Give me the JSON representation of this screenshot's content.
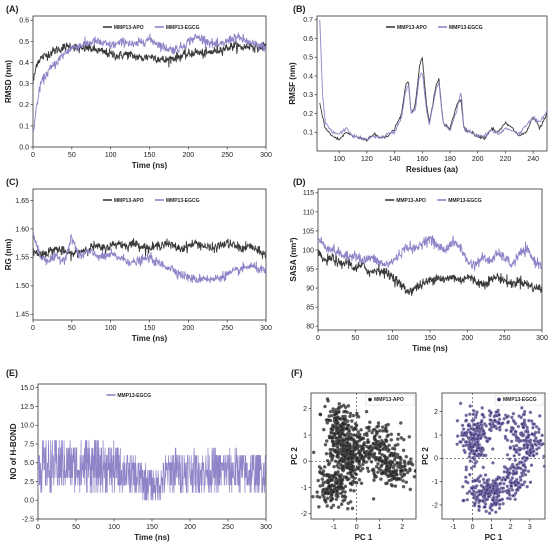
{
  "colors": {
    "apo": "#3a3a3a",
    "egcg": "#8f84c8",
    "egcg_fill": "#3b2f6e",
    "apo_fill": "#1f1f1f"
  },
  "chart_data": [
    {
      "id": "A",
      "panel_label": "(A)",
      "type": "line",
      "xlabel": "Time (ns)",
      "ylabel": "RMSD (nm)",
      "xlim": [
        0,
        300
      ],
      "ylim": [
        0,
        0.62
      ],
      "xticks": [
        0,
        50,
        100,
        150,
        200,
        250,
        300
      ],
      "yticks": [
        0.0,
        0.1,
        0.2,
        0.3,
        0.4,
        0.5,
        0.6
      ],
      "legend": "top-center",
      "series": [
        {
          "name": "MMP13-APO",
          "color": "#3a3a3a",
          "x": [
            0,
            5,
            10,
            20,
            30,
            40,
            50,
            60,
            70,
            80,
            90,
            100,
            110,
            120,
            130,
            140,
            150,
            160,
            170,
            180,
            190,
            200,
            210,
            220,
            230,
            240,
            250,
            260,
            270,
            280,
            290,
            300
          ],
          "y": [
            0.3,
            0.4,
            0.42,
            0.44,
            0.46,
            0.47,
            0.48,
            0.46,
            0.47,
            0.46,
            0.45,
            0.44,
            0.43,
            0.44,
            0.43,
            0.42,
            0.43,
            0.42,
            0.41,
            0.42,
            0.43,
            0.44,
            0.45,
            0.44,
            0.45,
            0.46,
            0.47,
            0.48,
            0.47,
            0.48,
            0.47,
            0.48
          ]
        },
        {
          "name": "MMP13-EGCG",
          "color": "#8f84c8",
          "x": [
            0,
            5,
            10,
            20,
            30,
            40,
            50,
            60,
            70,
            80,
            90,
            100,
            110,
            120,
            130,
            140,
            150,
            160,
            170,
            180,
            190,
            200,
            210,
            220,
            230,
            240,
            250,
            260,
            270,
            280,
            290,
            300
          ],
          "y": [
            0.06,
            0.2,
            0.3,
            0.36,
            0.4,
            0.44,
            0.47,
            0.48,
            0.49,
            0.5,
            0.49,
            0.48,
            0.49,
            0.5,
            0.48,
            0.5,
            0.51,
            0.49,
            0.47,
            0.46,
            0.47,
            0.5,
            0.52,
            0.51,
            0.49,
            0.48,
            0.5,
            0.52,
            0.51,
            0.49,
            0.48,
            0.47
          ]
        }
      ]
    },
    {
      "id": "B",
      "panel_label": "(B)",
      "type": "line",
      "xlabel": "Residues (aa)",
      "ylabel": "RMSF (nm)",
      "xlim": [
        84,
        250
      ],
      "ylim": [
        0,
        0.72
      ],
      "xticks": [
        100,
        120,
        140,
        160,
        180,
        200,
        220,
        240
      ],
      "yticks": [
        0.1,
        0.2,
        0.3,
        0.4,
        0.5,
        0.6,
        0.7
      ],
      "legend": "top-center",
      "series": [
        {
          "name": "MMP13-APO",
          "color": "#3a3a3a",
          "x": [
            86,
            90,
            95,
            100,
            105,
            110,
            115,
            120,
            125,
            130,
            135,
            140,
            145,
            148,
            150,
            152,
            155,
            158,
            160,
            163,
            165,
            170,
            172,
            175,
            180,
            185,
            188,
            190,
            195,
            200,
            205,
            210,
            215,
            220,
            225,
            230,
            235,
            240,
            245,
            250
          ],
          "y": [
            0.25,
            0.12,
            0.08,
            0.06,
            0.1,
            0.08,
            0.07,
            0.06,
            0.09,
            0.07,
            0.08,
            0.12,
            0.2,
            0.35,
            0.37,
            0.2,
            0.25,
            0.45,
            0.5,
            0.25,
            0.15,
            0.35,
            0.38,
            0.15,
            0.12,
            0.25,
            0.28,
            0.12,
            0.1,
            0.08,
            0.07,
            0.12,
            0.1,
            0.15,
            0.12,
            0.08,
            0.1,
            0.18,
            0.12,
            0.2
          ]
        },
        {
          "name": "MMP13-EGCG",
          "color": "#8f84c8",
          "x": [
            86,
            88,
            90,
            95,
            100,
            105,
            110,
            115,
            120,
            125,
            130,
            135,
            140,
            145,
            148,
            150,
            152,
            155,
            158,
            160,
            163,
            165,
            170,
            172,
            175,
            180,
            185,
            188,
            190,
            195,
            200,
            205,
            210,
            215,
            220,
            225,
            230,
            235,
            240,
            245,
            250
          ],
          "y": [
            0.7,
            0.3,
            0.15,
            0.1,
            0.09,
            0.12,
            0.08,
            0.07,
            0.06,
            0.08,
            0.07,
            0.09,
            0.1,
            0.18,
            0.32,
            0.35,
            0.2,
            0.22,
            0.4,
            0.42,
            0.22,
            0.14,
            0.33,
            0.36,
            0.15,
            0.11,
            0.22,
            0.32,
            0.12,
            0.1,
            0.08,
            0.08,
            0.11,
            0.09,
            0.12,
            0.11,
            0.09,
            0.14,
            0.18,
            0.15,
            0.22
          ]
        }
      ]
    },
    {
      "id": "C",
      "panel_label": "(C)",
      "type": "line",
      "xlabel": "Time (ns)",
      "ylabel": "RG (nm)",
      "xlim": [
        0,
        300
      ],
      "ylim": [
        1.44,
        1.67
      ],
      "xticks": [
        0,
        50,
        100,
        150,
        200,
        250,
        300
      ],
      "yticks": [
        1.45,
        1.5,
        1.55,
        1.6,
        1.65
      ],
      "legend": "top-center",
      "series": [
        {
          "name": "MMP13-APO",
          "color": "#3a3a3a",
          "x": [
            0,
            10,
            20,
            30,
            40,
            50,
            60,
            70,
            80,
            90,
            100,
            110,
            120,
            130,
            140,
            150,
            160,
            170,
            180,
            190,
            200,
            210,
            220,
            230,
            240,
            250,
            260,
            270,
            280,
            290,
            300
          ],
          "y": [
            1.56,
            1.555,
            1.56,
            1.565,
            1.56,
            1.555,
            1.56,
            1.565,
            1.57,
            1.565,
            1.57,
            1.575,
            1.57,
            1.575,
            1.57,
            1.565,
            1.57,
            1.575,
            1.57,
            1.565,
            1.57,
            1.575,
            1.57,
            1.565,
            1.57,
            1.575,
            1.57,
            1.565,
            1.57,
            1.56,
            1.555
          ]
        },
        {
          "name": "MMP13-EGCG",
          "color": "#8f84c8",
          "x": [
            0,
            10,
            20,
            30,
            40,
            50,
            60,
            70,
            80,
            90,
            100,
            110,
            120,
            130,
            140,
            150,
            160,
            170,
            180,
            190,
            200,
            210,
            220,
            230,
            240,
            250,
            260,
            270,
            280,
            290,
            300
          ],
          "y": [
            1.59,
            1.55,
            1.545,
            1.55,
            1.545,
            1.585,
            1.55,
            1.56,
            1.555,
            1.55,
            1.555,
            1.55,
            1.545,
            1.54,
            1.545,
            1.55,
            1.54,
            1.535,
            1.53,
            1.52,
            1.515,
            1.51,
            1.515,
            1.51,
            1.515,
            1.52,
            1.525,
            1.53,
            1.535,
            1.53,
            1.525
          ]
        }
      ]
    },
    {
      "id": "D",
      "panel_label": "(D)",
      "type": "line",
      "xlabel": "Time (ns)",
      "ylabel": "SASA (nm²)",
      "xlim": [
        0,
        300
      ],
      "ylim": [
        79,
        116
      ],
      "xticks": [
        0,
        50,
        100,
        150,
        200,
        250,
        300
      ],
      "yticks": [
        80,
        85,
        90,
        95,
        100,
        105,
        110,
        115
      ],
      "legend": "top-center",
      "series": [
        {
          "name": "MMP13-APO",
          "color": "#3a3a3a",
          "x": [
            0,
            10,
            20,
            30,
            40,
            50,
            60,
            70,
            80,
            90,
            100,
            110,
            120,
            130,
            140,
            150,
            160,
            170,
            180,
            190,
            200,
            210,
            220,
            230,
            240,
            250,
            260,
            270,
            280,
            290,
            300
          ],
          "y": [
            99,
            97,
            98,
            96,
            97,
            95,
            96,
            94,
            95,
            94,
            93,
            91,
            89,
            90,
            91,
            92,
            93,
            92,
            93,
            92,
            93,
            92,
            91,
            92,
            93,
            92,
            91,
            92,
            91,
            90,
            90
          ]
        },
        {
          "name": "MMP13-EGCG",
          "color": "#8f84c8",
          "x": [
            0,
            10,
            20,
            30,
            40,
            50,
            60,
            70,
            80,
            90,
            100,
            110,
            120,
            130,
            140,
            150,
            160,
            170,
            180,
            190,
            200,
            210,
            220,
            230,
            240,
            250,
            260,
            270,
            280,
            290,
            300
          ],
          "y": [
            103,
            101,
            100,
            99,
            98,
            99,
            97,
            98,
            97,
            96,
            97,
            99,
            101,
            100,
            102,
            103,
            101,
            100,
            102,
            101,
            97,
            96,
            98,
            97,
            99,
            98,
            96,
            99,
            100,
            97,
            96
          ]
        }
      ]
    },
    {
      "id": "E",
      "panel_label": "(E)",
      "type": "line",
      "xlabel": "Time (ns)",
      "ylabel": "NO of H-BOND",
      "xlim": [
        0,
        300
      ],
      "ylim": [
        -2.5,
        15.5
      ],
      "xticks": [
        0,
        50,
        100,
        150,
        200,
        250,
        300
      ],
      "yticks": [
        -2.5,
        0.0,
        2.5,
        5.0,
        7.5,
        10.0,
        12.5,
        15.0
      ],
      "legend": "top-center",
      "series": [
        {
          "name": "MMP13-EGCG",
          "color": "#8f84c8",
          "x": [
            0,
            10,
            20,
            30,
            40,
            50,
            60,
            70,
            80,
            90,
            100,
            110,
            120,
            130,
            140,
            150,
            160,
            170,
            180,
            190,
            200,
            210,
            220,
            230,
            240,
            250,
            260,
            270,
            280,
            290,
            300
          ],
          "y": [
            5,
            5,
            5,
            5.5,
            5,
            5,
            5,
            5.5,
            5,
            5,
            5,
            4,
            3.5,
            3,
            2.5,
            1.5,
            2,
            4.5,
            4.5,
            4.5,
            4.5,
            4.5,
            4.5,
            4.5,
            4.5,
            4.5,
            4.5,
            4.5,
            4.5,
            4.5,
            4.5
          ],
          "min": [
            1,
            1,
            1,
            1,
            1.5,
            1,
            1,
            1,
            1,
            1,
            1,
            1,
            1,
            0.5,
            0,
            0,
            0,
            1,
            1,
            1,
            1,
            1,
            1,
            1,
            1,
            1,
            1,
            1,
            1,
            1,
            1
          ],
          "max": [
            8,
            8,
            8,
            8.5,
            8,
            8,
            8,
            8.5,
            8,
            8,
            7.5,
            7,
            6,
            6,
            5,
            4,
            4,
            6.5,
            7,
            6.5,
            7,
            6.5,
            7,
            7,
            6.5,
            7,
            7,
            6.5,
            6.5,
            6.5,
            6.5
          ]
        }
      ]
    },
    {
      "id": "F1",
      "panel_label": "(F)",
      "type": "scatter",
      "xlabel": "PC 1",
      "ylabel": "PC 2",
      "xlim": [
        -2,
        2.6
      ],
      "ylim": [
        -2.2,
        2.6
      ],
      "xticks": [
        -1,
        0,
        1,
        2
      ],
      "yticks": [
        -2,
        -1,
        0,
        1,
        2
      ],
      "legend": "top-right",
      "series": [
        {
          "name": "MMP13-APO",
          "color": "#1f1f1f",
          "clusters": [
            {
              "cx": -0.8,
              "cy": 1.2,
              "sx": 0.35,
              "sy": 0.5,
              "n": 200
            },
            {
              "cx": -0.3,
              "cy": 0.2,
              "sx": 0.35,
              "sy": 0.45,
              "n": 180
            },
            {
              "cx": -1.0,
              "cy": -0.9,
              "sx": 0.4,
              "sy": 0.4,
              "n": 170
            },
            {
              "cx": 0.8,
              "cy": 0.6,
              "sx": 0.5,
              "sy": 0.45,
              "n": 170
            },
            {
              "cx": 1.6,
              "cy": -0.3,
              "sx": 0.45,
              "sy": 0.4,
              "n": 150
            }
          ]
        }
      ]
    },
    {
      "id": "F2",
      "panel_label": "",
      "type": "scatter",
      "xlabel": "PC 1",
      "ylabel": "PC 2",
      "xlim": [
        -1.6,
        3.8
      ],
      "ylim": [
        -2.6,
        2.8
      ],
      "xticks": [
        -1,
        0,
        1,
        2,
        3
      ],
      "yticks": [
        -2,
        -1,
        0,
        1,
        2
      ],
      "legend": "top-right",
      "series": [
        {
          "name": "MMP13-EGCG",
          "color": "#3b2f6e",
          "clusters": [
            {
              "cx": 0.1,
              "cy": 0.8,
              "sx": 0.35,
              "sy": 0.55,
              "n": 200
            },
            {
              "cx": 0.9,
              "cy": -1.5,
              "sx": 0.55,
              "sy": 0.35,
              "n": 200
            },
            {
              "cx": 2.2,
              "cy": -0.8,
              "sx": 0.3,
              "sy": 0.4,
              "n": 90
            },
            {
              "cx": 2.8,
              "cy": 0.8,
              "sx": 0.5,
              "sy": 0.6,
              "n": 160
            },
            {
              "cx": 1.2,
              "cy": 1.6,
              "sx": 0.25,
              "sy": 0.25,
              "n": 40
            }
          ]
        }
      ]
    }
  ]
}
